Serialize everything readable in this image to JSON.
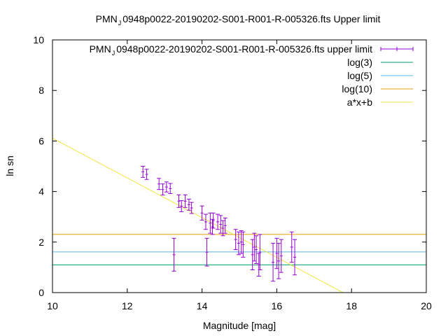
{
  "chart_data": {
    "type": "scatter",
    "title": {
      "prefix": "PMN",
      "subscript": "J",
      "rest": "0948p0022-20190202-S001-R001-R-005326.fts Upper limit"
    },
    "xlabel": "Magnitude [mag]",
    "ylabel": "ln sn",
    "xlim": [
      10,
      20
    ],
    "ylim": [
      0,
      10
    ],
    "xticks": [
      "10",
      "12",
      "14",
      "16",
      "18",
      "20"
    ],
    "yticks": [
      "0",
      "2",
      "4",
      "6",
      "8",
      "10"
    ],
    "grid": false,
    "legend_position": "top-right",
    "series": [
      {
        "name_prefix": "PMN",
        "name_subscript": "J",
        "name_rest": "0948p0022-20190202-S001-R001-R-005326.fts upper limit",
        "kind": "errorbar",
        "color": "#9400d3",
        "points": [
          {
            "x": 12.42,
            "y": 4.78,
            "yerr": 0.22
          },
          {
            "x": 12.52,
            "y": 4.68,
            "yerr": 0.2
          },
          {
            "x": 12.85,
            "y": 4.3,
            "yerr": 0.22
          },
          {
            "x": 12.95,
            "y": 4.08,
            "yerr": 0.22
          },
          {
            "x": 13.05,
            "y": 4.18,
            "yerr": 0.2
          },
          {
            "x": 13.15,
            "y": 4.12,
            "yerr": 0.2
          },
          {
            "x": 13.25,
            "y": 1.5,
            "yerr": 0.65
          },
          {
            "x": 13.38,
            "y": 3.62,
            "yerr": 0.25
          },
          {
            "x": 13.45,
            "y": 3.42,
            "yerr": 0.22
          },
          {
            "x": 13.55,
            "y": 3.62,
            "yerr": 0.25
          },
          {
            "x": 13.65,
            "y": 3.48,
            "yerr": 0.22
          },
          {
            "x": 13.72,
            "y": 3.35,
            "yerr": 0.22
          },
          {
            "x": 14.0,
            "y": 3.15,
            "yerr": 0.28
          },
          {
            "x": 14.1,
            "y": 2.8,
            "yerr": 0.3
          },
          {
            "x": 14.13,
            "y": 1.6,
            "yerr": 0.55
          },
          {
            "x": 14.22,
            "y": 2.75,
            "yerr": 0.4
          },
          {
            "x": 14.28,
            "y": 2.6,
            "yerr": 0.3
          },
          {
            "x": 14.3,
            "y": 2.85,
            "yerr": 0.3
          },
          {
            "x": 14.42,
            "y": 2.8,
            "yerr": 0.3
          },
          {
            "x": 14.5,
            "y": 2.7,
            "yerr": 0.35
          },
          {
            "x": 14.56,
            "y": 2.55,
            "yerr": 0.3
          },
          {
            "x": 14.62,
            "y": 2.65,
            "yerr": 0.3
          },
          {
            "x": 14.9,
            "y": 2.1,
            "yerr": 0.4
          },
          {
            "x": 14.98,
            "y": 1.95,
            "yerr": 0.45
          },
          {
            "x": 15.05,
            "y": 2.0,
            "yerr": 0.45
          },
          {
            "x": 15.1,
            "y": 1.9,
            "yerr": 0.5
          },
          {
            "x": 15.35,
            "y": 1.5,
            "yerr": 0.6
          },
          {
            "x": 15.4,
            "y": 1.8,
            "yerr": 0.55
          },
          {
            "x": 15.45,
            "y": 1.7,
            "yerr": 0.55
          },
          {
            "x": 15.52,
            "y": 1.1,
            "yerr": 0.45
          },
          {
            "x": 15.55,
            "y": 1.6,
            "yerr": 0.7
          },
          {
            "x": 15.9,
            "y": 1.2,
            "yerr": 0.75
          },
          {
            "x": 16.0,
            "y": 1.55,
            "yerr": 0.6
          },
          {
            "x": 16.05,
            "y": 1.25,
            "yerr": 0.7
          },
          {
            "x": 16.12,
            "y": 1.45,
            "yerr": 0.65
          },
          {
            "x": 16.4,
            "y": 1.8,
            "yerr": 0.6
          },
          {
            "x": 16.48,
            "y": 1.4,
            "yerr": 0.7
          }
        ]
      },
      {
        "name": "log(3)",
        "kind": "hline",
        "color": "#009e73",
        "y": 1.0986
      },
      {
        "name": "log(5)",
        "kind": "hline",
        "color": "#56b4e9",
        "y": 1.6094
      },
      {
        "name": "log(10)",
        "kind": "hline",
        "color": "#e69f00",
        "y": 2.3026
      },
      {
        "name": "a*x+b",
        "kind": "line",
        "color": "#f0e442",
        "slope": -0.786,
        "intercept": 13.97
      }
    ]
  }
}
